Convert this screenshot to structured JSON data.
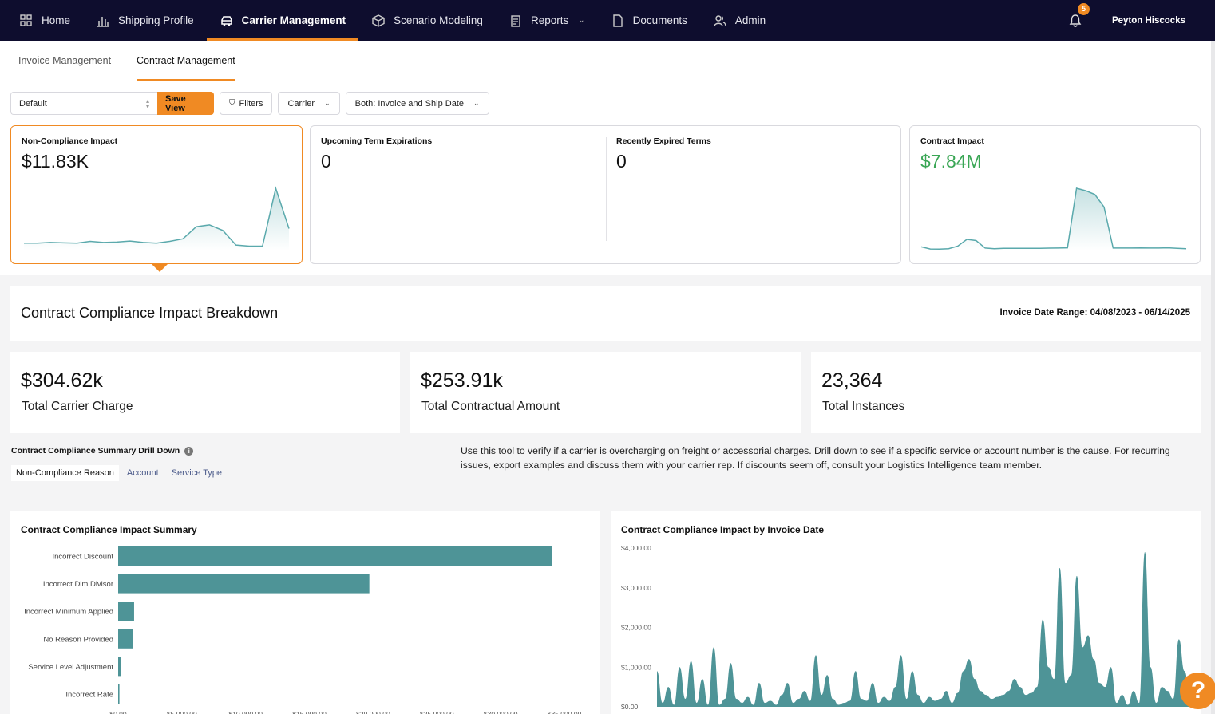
{
  "nav": {
    "items": [
      {
        "label": "Home",
        "icon": "grid-icon",
        "active": false
      },
      {
        "label": "Shipping Profile",
        "icon": "bar-chart-icon",
        "active": false
      },
      {
        "label": "Carrier Management",
        "icon": "truck-icon",
        "active": true
      },
      {
        "label": "Scenario Modeling",
        "icon": "cube-icon",
        "active": false
      },
      {
        "label": "Reports",
        "icon": "report-icon",
        "active": false,
        "has_dropdown": true
      },
      {
        "label": "Documents",
        "icon": "document-icon",
        "active": false
      },
      {
        "label": "Admin",
        "icon": "users-icon",
        "active": false
      }
    ],
    "notifications": "5",
    "user": "Peyton Hiscocks",
    "accent": "#f08a23",
    "background": "#0e0d2e"
  },
  "subnav": {
    "tabs": [
      {
        "label": "Invoice Management",
        "active": false
      },
      {
        "label": "Contract Management",
        "active": true
      }
    ]
  },
  "filters": {
    "view": "Default",
    "save_label": "Save View",
    "filters_label": "Filters",
    "carrier_label": "Carrier",
    "date_label": "Both: Invoice and Ship Date"
  },
  "kpis": {
    "non_compliance": {
      "label": "Non-Compliance Impact",
      "value": "$11.83K",
      "sparkline": [
        2,
        2,
        2.2,
        2.1,
        2,
        2.5,
        2.2,
        2.3,
        2.6,
        2.2,
        2,
        2.5,
        3.2,
        6.5,
        7,
        5.5,
        1.5,
        1.2,
        1.2,
        17,
        6
      ]
    },
    "upcoming": {
      "label": "Upcoming Term Expirations",
      "value": "0"
    },
    "expired": {
      "label": "Recently Expired Terms",
      "value": "0"
    },
    "contract_impact": {
      "label": "Contract Impact",
      "value": "$7.84M",
      "value_color": "#3aa655",
      "sparkline": [
        3,
        1.2,
        1.1,
        1.5,
        3.5,
        9,
        8,
        2,
        1.5,
        1.8,
        1.8,
        1.7,
        1.8,
        1.8,
        1.9,
        2,
        2.2,
        50,
        48,
        45,
        35,
        2,
        2,
        2,
        2.1,
        2,
        2,
        2.2,
        1.8,
        1.5
      ]
    }
  },
  "breakdown": {
    "title": "Contract Compliance Impact Breakdown",
    "date_range": "Invoice Date Range: 04/08/2023 - 06/14/2025"
  },
  "stats": [
    {
      "value": "$304.62k",
      "label": "Total Carrier Charge"
    },
    {
      "value": "$253.91k",
      "label": "Total Contractual Amount"
    },
    {
      "value": "23,364",
      "label": "Total Instances"
    }
  ],
  "drill": {
    "title": "Contract Compliance Summary Drill Down",
    "tabs": [
      "Non-Compliance Reason",
      "Account",
      "Service Type"
    ],
    "help": "Use this tool to verify if a carrier is overcharging on freight or accessorial charges. Drill down to see if a specific service or account number is the cause. For recurring issues, export examples and discuss them with your carrier rep. If discounts seem off, consult your Logistics Intelligence team member."
  },
  "chart_data": [
    {
      "type": "bar",
      "orientation": "horizontal",
      "title": "Contract Compliance Impact Summary",
      "categories": [
        "Incorrect Discount",
        "Incorrect Dim Divisor",
        "Incorrect Minimum Applied",
        "No Reason Provided",
        "Service Level Adjustment",
        "Incorrect Rate"
      ],
      "values": [
        34000,
        19700,
        1250,
        1150,
        200,
        100
      ],
      "xlim": [
        0,
        37000
      ],
      "xticks": [
        "$0.00",
        "$5,000.00",
        "$10,000.00",
        "$15,000.00",
        "$20,000.00",
        "$25,000.00",
        "$30,000.00",
        "$35,000.00"
      ],
      "color": "#4e9497"
    },
    {
      "type": "area",
      "title": "Contract Compliance Impact by Invoice Date",
      "ylim": [
        0,
        4000
      ],
      "yticks": [
        "$4,000.00",
        "$3,000.00",
        "$2,000.00",
        "$1,000.00",
        "$0.00"
      ],
      "values": [
        900,
        100,
        500,
        50,
        1000,
        200,
        1150,
        100,
        700,
        50,
        1500,
        50,
        200,
        1100,
        200,
        100,
        250,
        50,
        600,
        100,
        150,
        50,
        300,
        600,
        100,
        200,
        400,
        150,
        1300,
        300,
        800,
        200,
        50,
        100,
        150,
        900,
        200,
        150,
        600,
        100,
        250,
        150,
        500,
        1300,
        200,
        900,
        300,
        100,
        250,
        150,
        200,
        400,
        100,
        350,
        900,
        1200,
        700,
        400,
        300,
        200,
        250,
        300,
        400,
        700,
        500,
        300,
        350,
        500,
        2200,
        1000,
        700,
        3500,
        600,
        800,
        3300,
        1500,
        1800,
        1200,
        600,
        500,
        1000,
        100,
        300,
        50,
        400,
        100,
        3900,
        1000,
        100,
        500,
        400,
        200,
        1700,
        900,
        200
      ]
    }
  ]
}
